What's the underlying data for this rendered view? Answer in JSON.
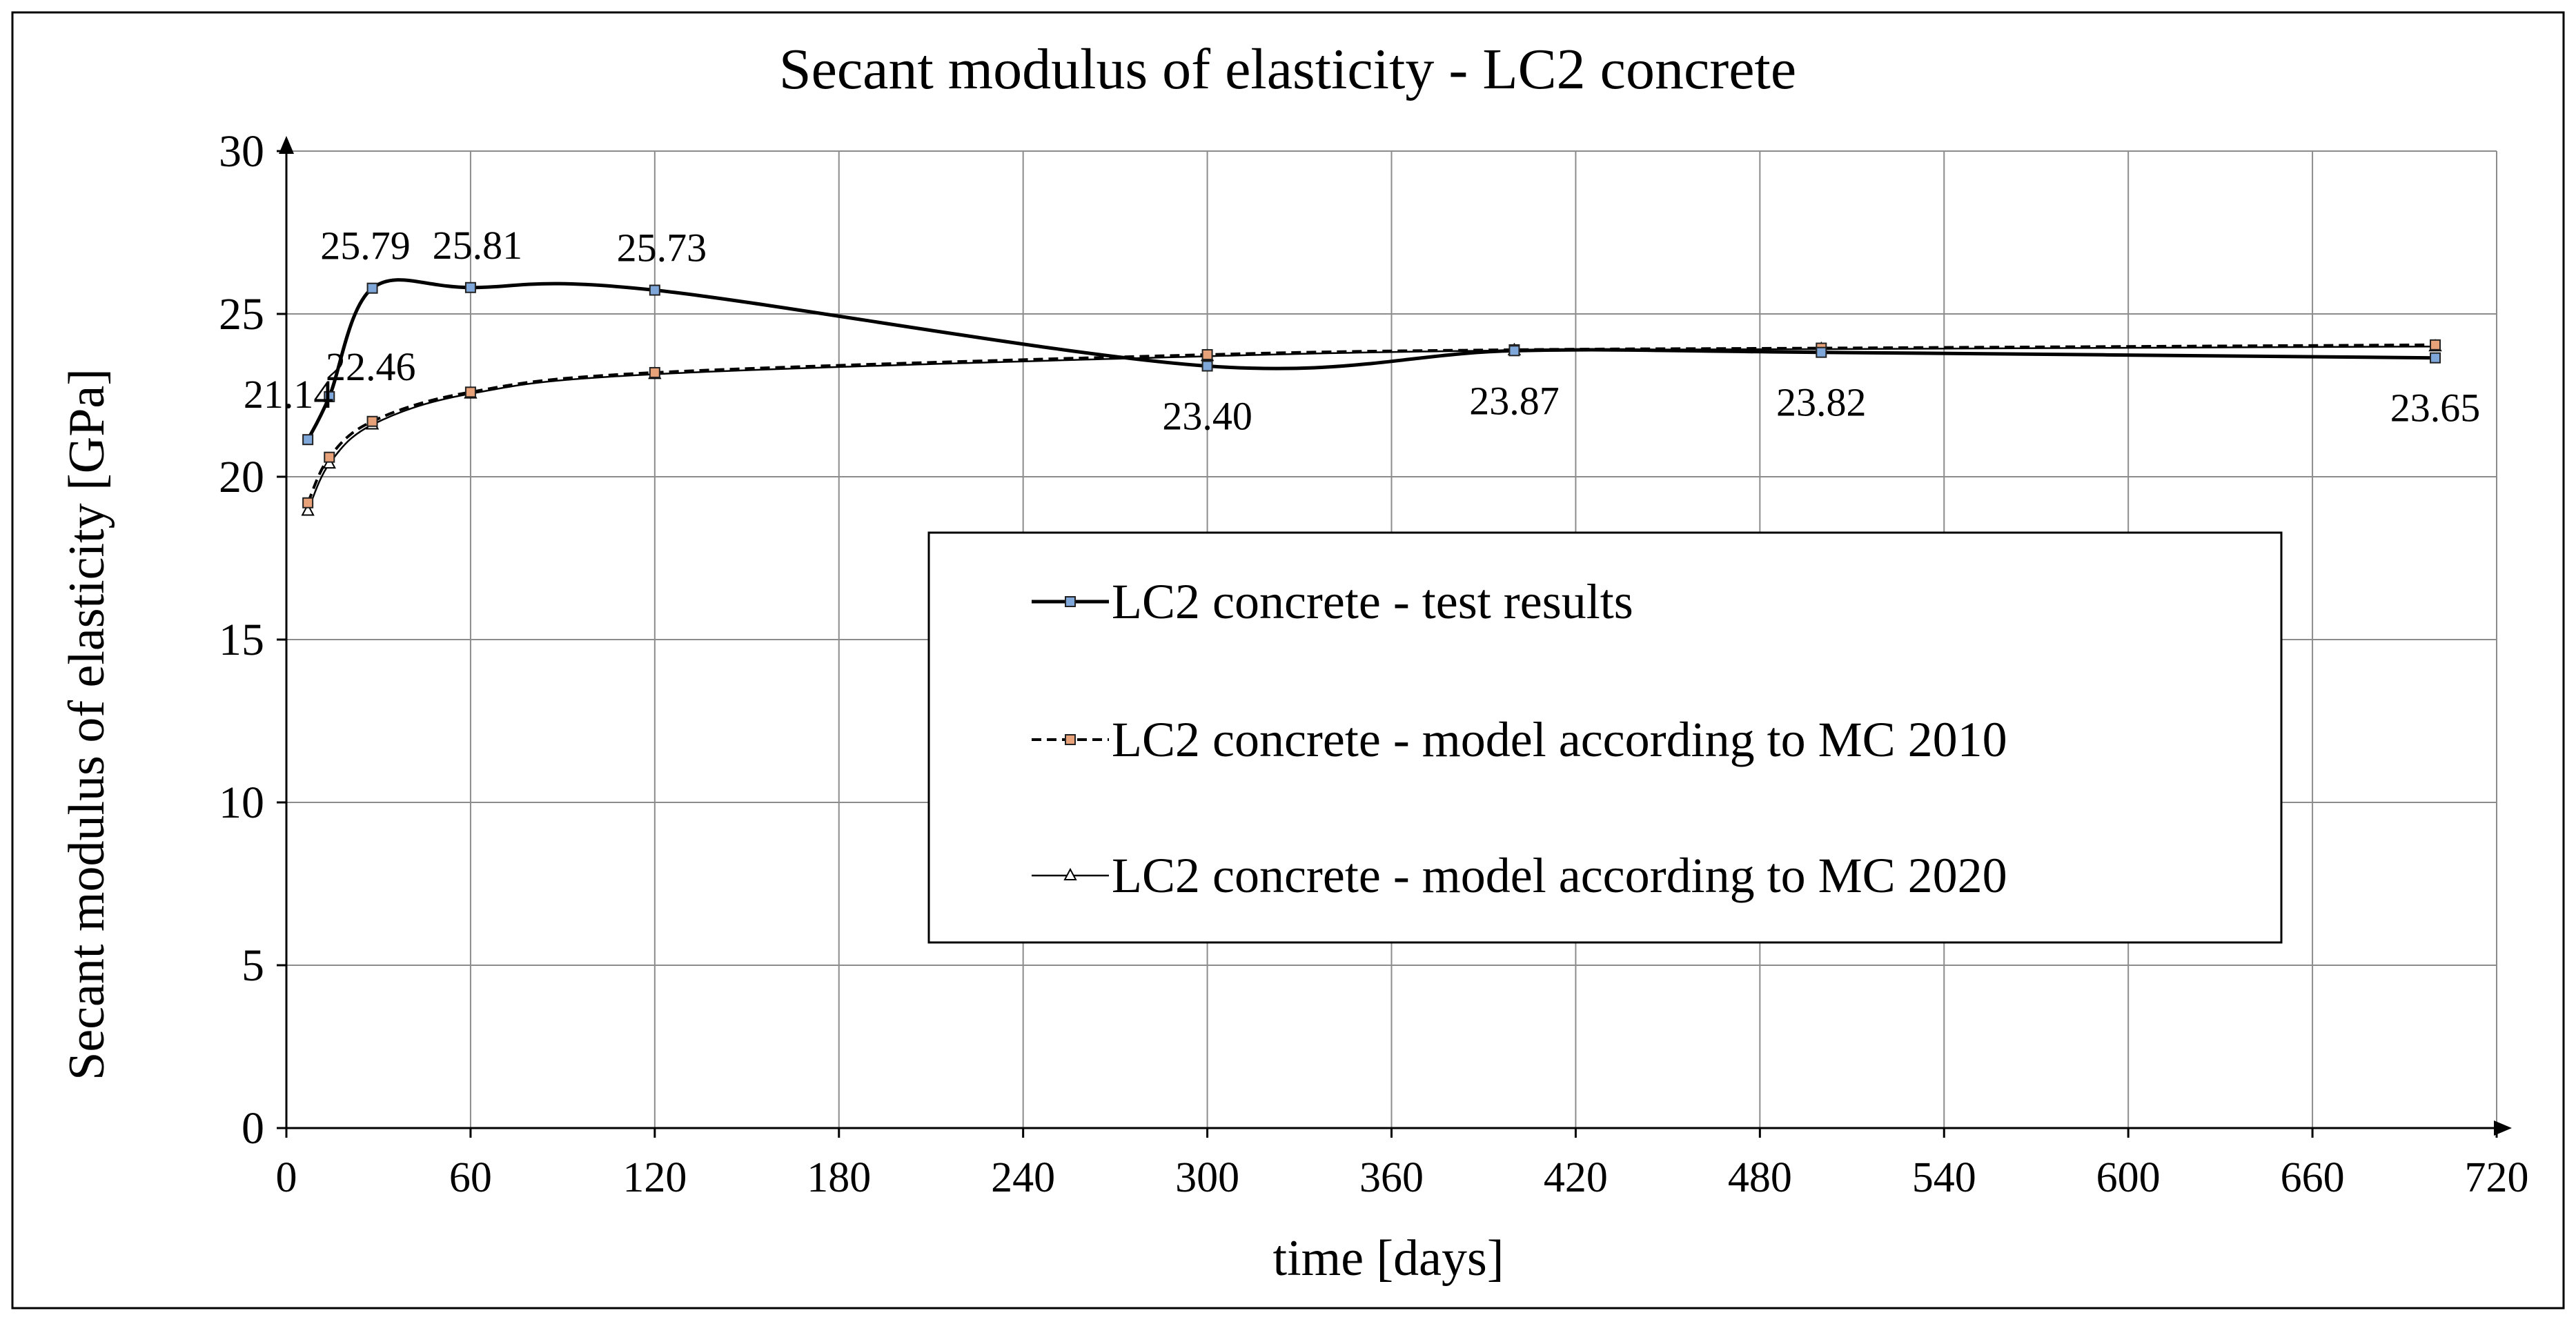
{
  "chart_data": {
    "type": "line",
    "title": "Secant modulus of elasticity - LC2 concrete",
    "xlabel": "time [days]",
    "ylabel": "Secant modulus of elasticity [GPa]",
    "xlim": [
      0,
      720
    ],
    "ylim": [
      0,
      30
    ],
    "xticks": [
      0,
      60,
      120,
      180,
      240,
      300,
      360,
      420,
      480,
      540,
      600,
      660,
      720
    ],
    "yticks": [
      0,
      5,
      10,
      15,
      20,
      25,
      30
    ],
    "grid": true,
    "legend_position": "center-right",
    "series": [
      {
        "name": "LC2 concrete - test results",
        "style": "solid",
        "line_color": "#000000",
        "marker": "square",
        "marker_color": "#7fa7d9",
        "x": [
          7,
          14,
          28,
          60,
          120,
          300,
          400,
          500,
          700
        ],
        "y": [
          21.14,
          22.46,
          25.79,
          25.81,
          25.73,
          23.4,
          23.87,
          23.82,
          23.65
        ],
        "labels": [
          "21.14",
          "22.46",
          "25.79",
          "25.81",
          "25.73",
          "23.40",
          "23.87",
          "23.82",
          "23.65"
        ]
      },
      {
        "name": "LC2 concrete - model according to MC 2010",
        "style": "dashed",
        "line_color": "#000000",
        "marker": "square",
        "marker_color": "#e8a27a",
        "x": [
          7,
          14,
          28,
          60,
          120,
          300,
          400,
          500,
          700
        ],
        "y": [
          19.2,
          20.6,
          21.7,
          22.6,
          23.2,
          23.75,
          23.9,
          23.95,
          24.05
        ],
        "labels": []
      },
      {
        "name": "LC2 concrete - model according to MC 2020",
        "style": "solid-thin",
        "line_color": "#000000",
        "marker": "triangle",
        "marker_color": "#ffffff",
        "x": [
          7,
          14,
          28,
          60,
          120,
          300,
          400,
          500,
          700
        ],
        "y": [
          18.95,
          20.4,
          21.6,
          22.55,
          23.15,
          23.7,
          23.88,
          23.92,
          24.0
        ],
        "labels": []
      }
    ]
  }
}
